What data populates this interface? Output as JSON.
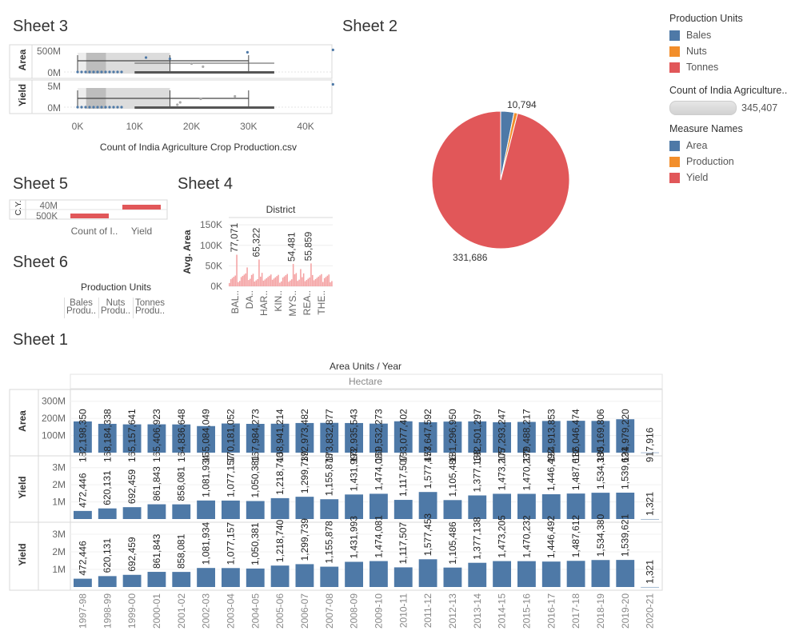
{
  "sheets": {
    "sheet1": "Sheet 1",
    "sheet2": "Sheet 2",
    "sheet3": "Sheet 3",
    "sheet4": "Sheet 4",
    "sheet5": "Sheet 5",
    "sheet6": "Sheet 6"
  },
  "legend": {
    "production_units_title": "Production Units",
    "production_units": [
      {
        "label": "Bales",
        "color": "#4e79a7"
      },
      {
        "label": "Nuts",
        "color": "#f28e2b"
      },
      {
        "label": "Tonnes",
        "color": "#e15759"
      }
    ],
    "count_title": "Count of India Agriculture..",
    "count_value": "345,407",
    "measure_names_title": "Measure Names",
    "measure_names": [
      {
        "label": "Area",
        "color": "#4e79a7"
      },
      {
        "label": "Production",
        "color": "#f28e2b"
      },
      {
        "label": "Yield",
        "color": "#e15759"
      }
    ]
  },
  "sheet6": {
    "header": "Production Units",
    "columns": [
      "Bales",
      "Nuts",
      "Tonnes"
    ],
    "cells": [
      "Produ..",
      "Produ..",
      "Produ.."
    ]
  },
  "chart_data": [
    {
      "id": "sheet3",
      "type": "boxplot",
      "xlabel": "Count of India Agriculture Crop Production.csv",
      "xticks": [
        "0K",
        "10K",
        "20K",
        "30K",
        "40K"
      ],
      "xlim": [
        0,
        47000
      ],
      "rows": [
        {
          "label": "Area",
          "yticks": [
            "500M",
            "0M"
          ]
        },
        {
          "label": "Yield",
          "yticks": [
            "5M",
            "0M"
          ]
        }
      ],
      "boxes": [
        {
          "q1": 1500,
          "median": 5000,
          "q3": 16200,
          "whisker_low": 0,
          "whisker_high": 30000
        },
        {
          "q1": 1500,
          "median": 5000,
          "q3": 16200,
          "whisker_low": 0,
          "whisker_high": 30000
        }
      ],
      "outliers_area": [
        [
          44800,
          0.92
        ],
        [
          16200,
          0.55
        ],
        [
          20000,
          0.35
        ],
        [
          29800,
          0.82
        ],
        [
          12000,
          0.6
        ],
        [
          22000,
          0.22
        ]
      ],
      "outliers_yield": [
        [
          18000,
          0.2
        ],
        [
          21600,
          0.35
        ],
        [
          27600,
          0.45
        ],
        [
          44800,
          0.95
        ],
        [
          17500,
          0.1
        ]
      ]
    },
    {
      "id": "sheet2",
      "type": "pie",
      "series": [
        {
          "name": "Bales",
          "value": 10794,
          "label": "10,794",
          "color": "#4e79a7"
        },
        {
          "name": "Nuts",
          "value": 2927,
          "color": "#f28e2b"
        },
        {
          "name": "Tonnes",
          "value": 331686,
          "label": "331,686",
          "color": "#e15759"
        }
      ]
    },
    {
      "id": "sheet5",
      "type": "bar",
      "ylabel": "C.Y.",
      "categories": [
        "Count of I..",
        "Yield"
      ],
      "yticks": [
        "40M",
        "500K"
      ]
    },
    {
      "id": "sheet4",
      "type": "bar",
      "title": "District",
      "ylabel": "Avg. Area",
      "yticks": [
        "150K",
        "100K",
        "50K",
        "0K"
      ],
      "ylim": [
        0,
        160000
      ],
      "xticks": [
        "BAL..",
        "DA..",
        "HAR..",
        "KIN..",
        "MYS..",
        "REA..",
        "THE.."
      ],
      "labels": [
        {
          "value": 77071,
          "label": "77,071",
          "pos": 0.07
        },
        {
          "value": 65322,
          "label": "65,322",
          "pos": 0.28
        },
        {
          "value": 54481,
          "label": "54,481",
          "pos": 0.62
        },
        {
          "value": 55859,
          "label": "55,859",
          "pos": 0.78
        }
      ]
    },
    {
      "id": "sheet1",
      "type": "bar",
      "title": "Area Units  /  Year",
      "subtitle": "Hectare",
      "categories": [
        "1997-98",
        "1998-99",
        "1999-00",
        "2000-01",
        "2001-02",
        "2002-03",
        "2003-04",
        "2004-05",
        "2005-06",
        "2006-07",
        "2007-08",
        "2008-09",
        "2009-10",
        "2010-11",
        "2011-12",
        "2012-13",
        "2013-14",
        "2014-15",
        "2015-16",
        "2016-17",
        "2017-18",
        "2018-19",
        "2019-20",
        "2020-21"
      ],
      "series": [
        {
          "name": "Area",
          "yticks": [
            "300M",
            "200M",
            "100M"
          ],
          "ylim": [
            0,
            350000000
          ],
          "values": [
            182198350,
            168184338,
            165157641,
            165406923,
            164836648,
            155084049,
            170181052,
            167984273,
            168941214,
            172973482,
            173832877,
            172935543,
            169532273,
            183077402,
            177647592,
            181296950,
            182501297,
            177293247,
            179488217,
            184913853,
            186046474,
            185169806,
            194979220,
            917916
          ],
          "labels": [
            "182,198,350",
            "168,184,338",
            "165,157,641",
            "165,406,923",
            "164,836,648",
            "155,084,049",
            "170,181,052",
            "167,984,273",
            "168,941,214",
            "172,973,482",
            "173,832,877",
            "172,935,543",
            "169,532,273",
            "183,077,402",
            "177,647,592",
            "181,296,950",
            "182,501,297",
            "177,293,247",
            "179,488,217",
            "184,913,853",
            "186,046,474",
            "185,169,806",
            "194,979,220",
            "917,916"
          ]
        },
        {
          "name": "Yield",
          "yticks": [
            "3M",
            "2M",
            "1M"
          ],
          "ylim": [
            0,
            3500000
          ],
          "values": [
            472446,
            620131,
            692459,
            861843,
            858081,
            1081934,
            1077157,
            1050381,
            1218740,
            1299739,
            1155878,
            1431993,
            1474081,
            1117507,
            1577453,
            1105486,
            1377138,
            1473205,
            1470232,
            1446492,
            1487612,
            1534380,
            1539621,
            1321
          ],
          "labels": [
            "472,446",
            "620,131",
            "692,459",
            "861,843",
            "858,081",
            "1,081,934",
            "1,077,157",
            "1,050,381",
            "1,218,740",
            "1,299,739",
            "1,155,878",
            "1,431,993",
            "1,474,081",
            "1,117,507",
            "1,577,453",
            "1,105,486",
            "1,377,138",
            "1,473,205",
            "1,470,232",
            "1,446,492",
            "1,487,612",
            "1,534,380",
            "1,539,621",
            "1,321"
          ]
        },
        {
          "name": "Yield",
          "yticks": [
            "3M",
            "2M",
            "1M"
          ],
          "ylim": [
            0,
            3500000
          ],
          "values": [
            472446,
            620131,
            692459,
            861843,
            858081,
            1081934,
            1077157,
            1050381,
            1218740,
            1299739,
            1155878,
            1431993,
            1474081,
            1117507,
            1577453,
            1105486,
            1377138,
            1473205,
            1470232,
            1446492,
            1487612,
            1534380,
            1539621,
            1321
          ],
          "labels": [
            "472,446",
            "620,131",
            "692,459",
            "861,843",
            "858,081",
            "1,081,934",
            "1,077,157",
            "1,050,381",
            "1,218,740",
            "1,299,739",
            "1,155,878",
            "1,431,993",
            "1,474,081",
            "1,117,507",
            "1,577,453",
            "1,105,486",
            "1,377,138",
            "1,473,205",
            "1,470,232",
            "1,446,492",
            "1,487,612",
            "1,534,380",
            "1,539,621",
            "1,321"
          ]
        }
      ],
      "bar_color": "#4e79a7"
    }
  ]
}
